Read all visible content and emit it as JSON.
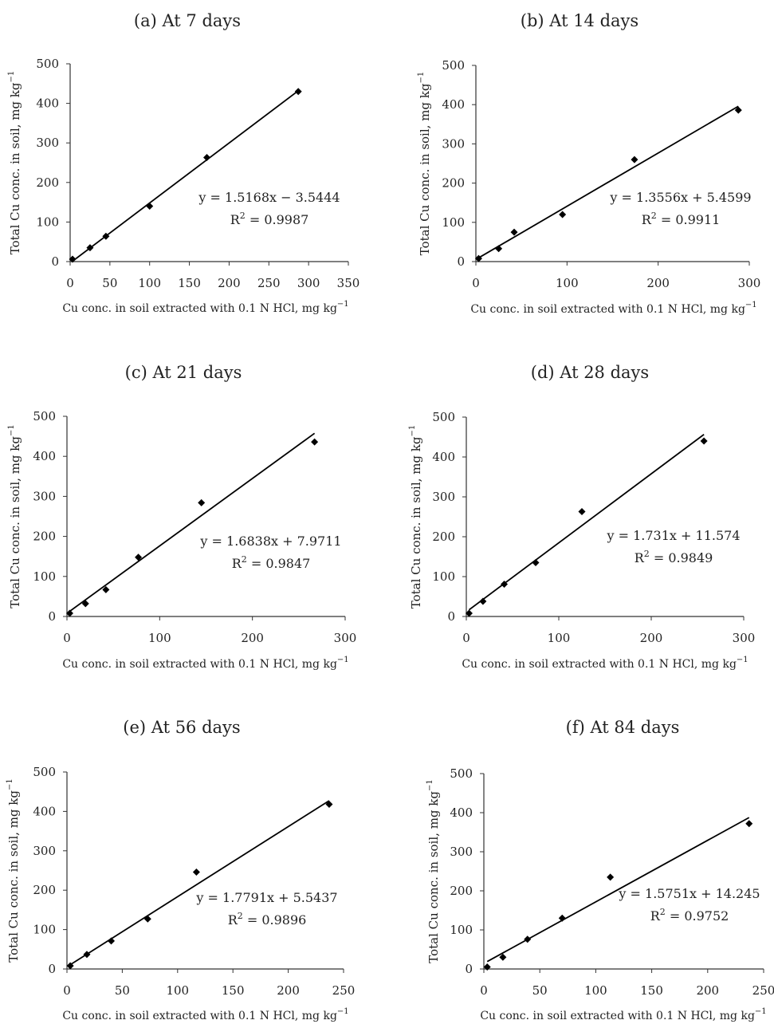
{
  "chart_data": [
    {
      "type": "scatter",
      "title": "(a) At 7 days",
      "xlabel": "Cu conc. in soil extracted with 0.1 N HCl, mg kg",
      "ylabel": "Total Cu conc. in soil, mg kg",
      "unit_exponent": "−1",
      "xlim": [
        0,
        350
      ],
      "ylim": [
        0,
        500
      ],
      "xticks": [
        0,
        50,
        100,
        150,
        200,
        250,
        300,
        350
      ],
      "yticks": [
        0,
        100,
        200,
        300,
        400,
        500
      ],
      "points": [
        [
          3,
          6
        ],
        [
          25,
          35
        ],
        [
          45,
          64
        ],
        [
          100,
          140
        ],
        [
          172,
          263
        ],
        [
          287,
          430
        ]
      ],
      "trendline": {
        "slope": 1.5168,
        "intercept": -3.5444,
        "x_range": [
          3,
          287
        ]
      },
      "equation": "y = 1.5168x − 3.5444",
      "r2_label": "R",
      "r2_exponent": "2",
      "r2_value": " = 0.9987"
    },
    {
      "type": "scatter",
      "title": "(b) At 14 days",
      "xlabel": "Cu conc. in soil extracted with 0.1 N HCl, mg kg",
      "ylabel": "Total Cu conc. in soil, mg kg",
      "unit_exponent": "−1",
      "xlim": [
        0,
        300
      ],
      "ylim": [
        0,
        500
      ],
      "xticks": [
        0,
        100,
        200,
        300
      ],
      "yticks": [
        0,
        100,
        200,
        300,
        400,
        500
      ],
      "points": [
        [
          3,
          8
        ],
        [
          25,
          33
        ],
        [
          42,
          75
        ],
        [
          95,
          120
        ],
        [
          174,
          260
        ],
        [
          288,
          386
        ]
      ],
      "trendline": {
        "slope": 1.3556,
        "intercept": 5.4599,
        "x_range": [
          3,
          288
        ]
      },
      "equation": "y = 1.3556x + 5.4599",
      "r2_label": "R",
      "r2_exponent": "2",
      "r2_value": " = 0.9911"
    },
    {
      "type": "scatter",
      "title": "(c) At 21 days",
      "xlabel": "Cu conc. in soil extracted with 0.1 N HCl, mg kg",
      "ylabel": "Total Cu conc. in soil, mg kg",
      "unit_exponent": "−1",
      "xlim": [
        0,
        300
      ],
      "ylim": [
        0,
        500
      ],
      "xticks": [
        0,
        100,
        200,
        300
      ],
      "yticks": [
        0,
        100,
        200,
        300,
        400,
        500
      ],
      "points": [
        [
          3,
          8
        ],
        [
          20,
          32
        ],
        [
          42,
          67
        ],
        [
          77,
          148
        ],
        [
          145,
          284
        ],
        [
          267,
          436
        ]
      ],
      "trendline": {
        "slope": 1.6838,
        "intercept": 7.9711,
        "x_range": [
          3,
          267
        ]
      },
      "equation": "y = 1.6838x + 7.9711",
      "r2_label": "R",
      "r2_exponent": "2",
      "r2_value": " = 0.9847"
    },
    {
      "type": "scatter",
      "title": "(d) At 28 days",
      "xlabel": "Cu conc. in soil extracted with 0.1 N HCl, mg kg",
      "ylabel": "Total Cu conc. in soil, mg kg",
      "unit_exponent": "−1",
      "xlim": [
        0,
        300
      ],
      "ylim": [
        0,
        500
      ],
      "xticks": [
        0,
        100,
        200,
        300
      ],
      "yticks": [
        0,
        100,
        200,
        300,
        400,
        500
      ],
      "points": [
        [
          3,
          8
        ],
        [
          18,
          38
        ],
        [
          41,
          81
        ],
        [
          75,
          135
        ],
        [
          125,
          263
        ],
        [
          257,
          440
        ]
      ],
      "trendline": {
        "slope": 1.731,
        "intercept": 11.574,
        "x_range": [
          3,
          257
        ]
      },
      "equation": "y = 1.731x + 11.574",
      "r2_label": "R",
      "r2_exponent": "2",
      "r2_value": " = 0.9849"
    },
    {
      "type": "scatter",
      "title": "(e) At 56 days",
      "xlabel": "Cu conc. in soil extracted with 0.1 N HCl, mg kg",
      "ylabel": "Total Cu conc. in soil, mg kg",
      "unit_exponent": "−1",
      "xlim": [
        0,
        250
      ],
      "ylim": [
        0,
        500
      ],
      "xticks": [
        0,
        50,
        100,
        150,
        200,
        250
      ],
      "yticks": [
        0,
        100,
        200,
        300,
        400,
        500
      ],
      "points": [
        [
          3,
          8
        ],
        [
          18,
          37
        ],
        [
          40,
          71
        ],
        [
          73,
          127
        ],
        [
          117,
          246
        ],
        [
          237,
          418
        ]
      ],
      "trendline": {
        "slope": 1.7791,
        "intercept": 5.5437,
        "x_range": [
          3,
          237
        ]
      },
      "equation": "y = 1.7791x + 5.5437",
      "r2_label": "R",
      "r2_exponent": "2",
      "r2_value": " = 0.9896"
    },
    {
      "type": "scatter",
      "title": "(f) At 84 days",
      "xlabel": "Cu conc. in soil extracted with 0.1 N HCl, mg kg",
      "ylabel": "Total Cu conc. in soil, mg kg",
      "unit_exponent": "−1",
      "xlim": [
        0,
        250
      ],
      "ylim": [
        0,
        500
      ],
      "xticks": [
        0,
        50,
        100,
        150,
        200,
        250
      ],
      "yticks": [
        0,
        100,
        200,
        300,
        400,
        500
      ],
      "points": [
        [
          3,
          5
        ],
        [
          17,
          30
        ],
        [
          39,
          76
        ],
        [
          70,
          130
        ],
        [
          113,
          235
        ],
        [
          237,
          372
        ]
      ],
      "trendline": {
        "slope": 1.5751,
        "intercept": 14.245,
        "x_range": [
          3,
          237
        ]
      },
      "equation": "y = 1.5751x + 14.245",
      "r2_label": "R",
      "r2_exponent": "2",
      "r2_value": " = 0.9752"
    }
  ]
}
